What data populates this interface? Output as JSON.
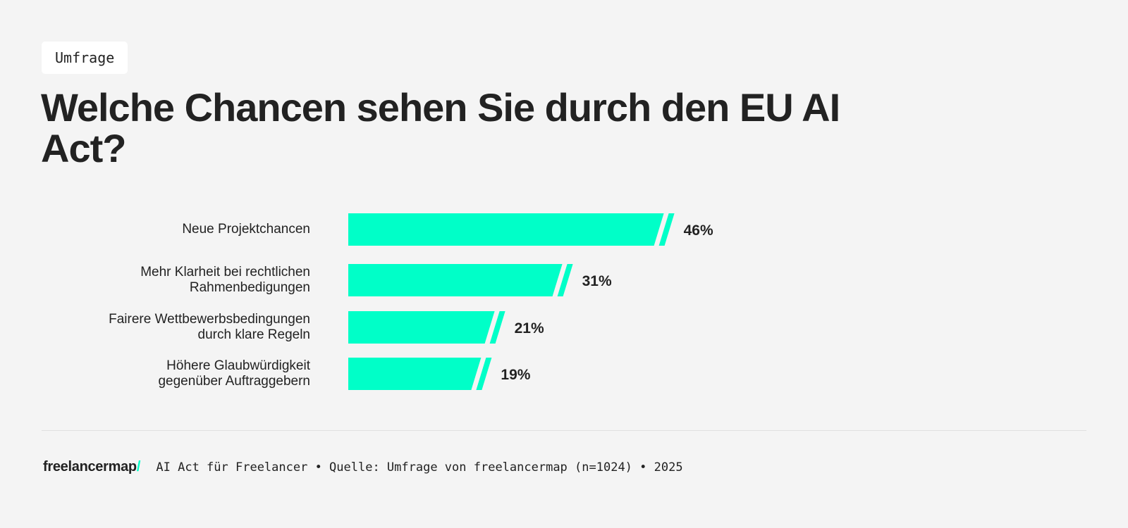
{
  "tag": "Umfrage",
  "title": "Welche Chancen sehen Sie durch den EU AI Act?",
  "chart_data": {
    "type": "bar",
    "orientation": "horizontal",
    "categories": [
      "Neue Projektchancen",
      "Mehr Klarheit bei rechtlichen\nRahmenbedigungen",
      "Fairere Wettbewerbsbedingungen\ndurch klare Regeln",
      "Höhere Glaubwürdigkeit\ngegenüber Auftraggebern"
    ],
    "values": [
      46,
      31,
      21,
      19
    ],
    "value_labels": [
      "46%",
      "31%",
      "21%",
      "19%"
    ],
    "unit": "%",
    "bar_color": "#00ffc8",
    "grid": false
  },
  "footer": {
    "logo": "freelancermap",
    "logo_slash": "/",
    "source": "AI Act für Freelancer • Quelle: Umfrage von freelancermap (n=1024) • 2025"
  }
}
